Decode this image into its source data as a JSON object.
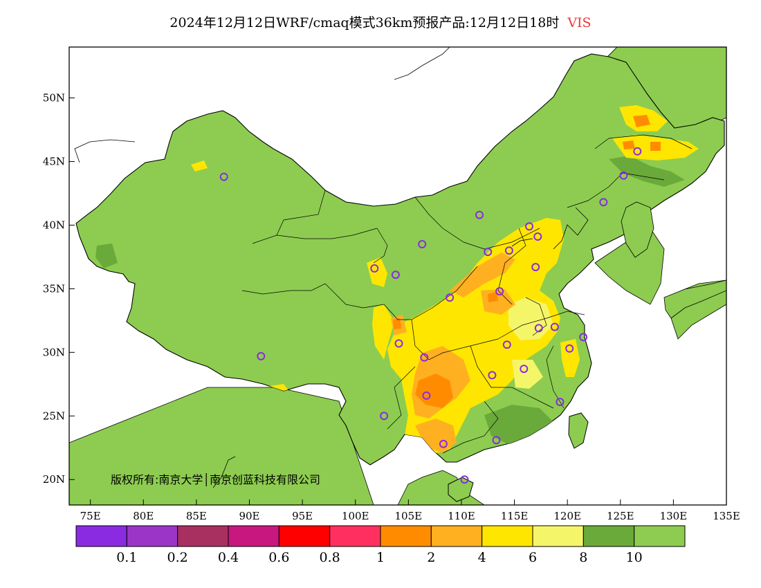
{
  "title": {
    "main": "2024年12月12日WRF/cmaq模式36km预报产品:12月12日18时",
    "variable": "VIS",
    "variable_color": "#e8383d"
  },
  "copyright": "版权所有:南京大学│南京创蓝科技有限公司",
  "axes": {
    "lon_range": [
      73,
      135
    ],
    "lat_range": [
      18,
      54
    ],
    "x_ticks": [
      "75E",
      "80E",
      "85E",
      "90E",
      "95E",
      "100E",
      "105E",
      "110E",
      "115E",
      "120E",
      "125E",
      "130E",
      "135E"
    ],
    "x_tick_values": [
      75,
      80,
      85,
      90,
      95,
      100,
      105,
      110,
      115,
      120,
      125,
      130,
      135
    ],
    "y_ticks": [
      "20N",
      "25N",
      "30N",
      "35N",
      "40N",
      "45N",
      "50N"
    ],
    "y_tick_values": [
      20,
      25,
      30,
      35,
      40,
      45,
      50
    ]
  },
  "colorbar": {
    "colors": [
      "#8a2be2",
      "#9b35c8",
      "#a83060",
      "#c8177f",
      "#ff0000",
      "#ff3060",
      "#ff8c00",
      "#ffb020",
      "#ffe600",
      "#f5f56a",
      "#6aaa3a",
      "#8dcc50"
    ],
    "labels": [
      "0.1",
      "0.2",
      "0.4",
      "0.6",
      "0.8",
      "1",
      "2",
      "4",
      "6",
      "8",
      "10"
    ]
  },
  "colors": {
    "land_default": "#8dcc50",
    "dark_green": "#6aaa3a",
    "light_yellow": "#f5f56a",
    "yellow": "#ffe600",
    "orange_light": "#ffb020",
    "orange": "#ff8c00",
    "station_marker": "#8a2be2"
  },
  "stations": [
    {
      "lon": 87.6,
      "lat": 43.8
    },
    {
      "lon": 91.1,
      "lat": 29.7
    },
    {
      "lon": 101.8,
      "lat": 36.6
    },
    {
      "lon": 103.8,
      "lat": 36.1
    },
    {
      "lon": 106.3,
      "lat": 38.5
    },
    {
      "lon": 111.7,
      "lat": 40.8
    },
    {
      "lon": 116.4,
      "lat": 39.9
    },
    {
      "lon": 117.2,
      "lat": 39.1
    },
    {
      "lon": 112.5,
      "lat": 37.9
    },
    {
      "lon": 114.5,
      "lat": 38.0
    },
    {
      "lon": 117.0,
      "lat": 36.7
    },
    {
      "lon": 113.6,
      "lat": 34.8
    },
    {
      "lon": 108.9,
      "lat": 34.3
    },
    {
      "lon": 104.1,
      "lat": 30.7
    },
    {
      "lon": 106.5,
      "lat": 29.6
    },
    {
      "lon": 114.3,
      "lat": 30.6
    },
    {
      "lon": 117.3,
      "lat": 31.9
    },
    {
      "lon": 118.8,
      "lat": 32.0
    },
    {
      "lon": 121.5,
      "lat": 31.2
    },
    {
      "lon": 120.2,
      "lat": 30.3
    },
    {
      "lon": 115.9,
      "lat": 28.7
    },
    {
      "lon": 112.9,
      "lat": 28.2
    },
    {
      "lon": 106.7,
      "lat": 26.6
    },
    {
      "lon": 102.7,
      "lat": 25.0
    },
    {
      "lon": 119.3,
      "lat": 26.1
    },
    {
      "lon": 113.3,
      "lat": 23.1
    },
    {
      "lon": 108.3,
      "lat": 22.8
    },
    {
      "lon": 110.3,
      "lat": 20.0
    },
    {
      "lon": 123.4,
      "lat": 41.8
    },
    {
      "lon": 125.3,
      "lat": 43.9
    },
    {
      "lon": 126.6,
      "lat": 45.8
    }
  ]
}
